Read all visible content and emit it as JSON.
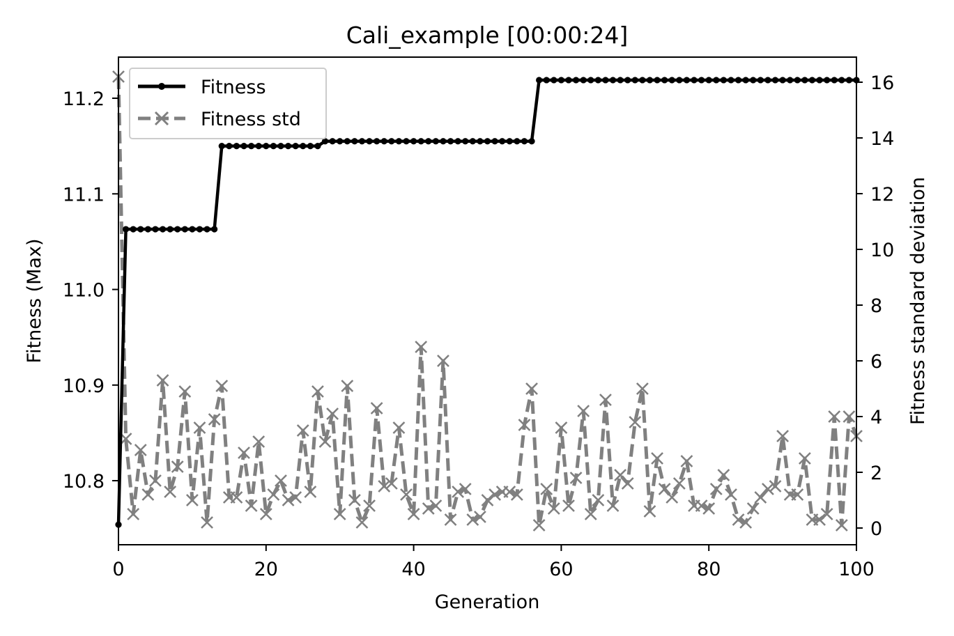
{
  "chart_data": {
    "type": "line",
    "title": "Cali_example  [00:00:24]",
    "xlabel": "Generation",
    "ylabel_left": "Fitness (Max)",
    "ylabel_right": "Fitness standard deviation",
    "xlim": [
      0,
      100
    ],
    "ylim_left": [
      10.733,
      11.243
    ],
    "ylim_right": [
      -0.6,
      16.9
    ],
    "xticks": [
      0,
      20,
      40,
      60,
      80,
      100
    ],
    "xtick_labels": [
      "0",
      "20",
      "40",
      "60",
      "80",
      "100"
    ],
    "yticks_left": [
      10.8,
      10.9,
      11.0,
      11.1,
      11.2
    ],
    "ytick_labels_left": [
      "10.8",
      "10.9",
      "11.0",
      "11.1",
      "11.2"
    ],
    "yticks_right": [
      0,
      2,
      4,
      6,
      8,
      10,
      12,
      14,
      16
    ],
    "ytick_labels_right": [
      "0",
      "2",
      "4",
      "6",
      "8",
      "10",
      "12",
      "14",
      "16"
    ],
    "grid": false,
    "legend": {
      "position": "top-left",
      "entries": [
        "Fitness",
        "Fitness std"
      ]
    },
    "series": [
      {
        "name": "Fitness",
        "axis": "left",
        "color": "#000000",
        "line_style": "solid",
        "marker": "dot",
        "x": [
          0,
          1,
          2,
          3,
          4,
          5,
          6,
          7,
          8,
          9,
          10,
          11,
          12,
          13,
          14,
          15,
          16,
          17,
          18,
          19,
          20,
          21,
          22,
          23,
          24,
          25,
          26,
          27,
          28,
          29,
          30,
          31,
          32,
          33,
          34,
          35,
          36,
          37,
          38,
          39,
          40,
          41,
          42,
          43,
          44,
          45,
          46,
          47,
          48,
          49,
          50,
          51,
          52,
          53,
          54,
          55,
          56,
          57,
          58,
          59,
          60,
          61,
          62,
          63,
          64,
          65,
          66,
          67,
          68,
          69,
          70,
          71,
          72,
          73,
          74,
          75,
          76,
          77,
          78,
          79,
          80,
          81,
          82,
          83,
          84,
          85,
          86,
          87,
          88,
          89,
          90,
          91,
          92,
          93,
          94,
          95,
          96,
          97,
          98,
          99,
          100
        ],
        "y": [
          10.754,
          11.063,
          11.063,
          11.063,
          11.063,
          11.063,
          11.063,
          11.063,
          11.063,
          11.063,
          11.063,
          11.063,
          11.063,
          11.063,
          11.15,
          11.15,
          11.15,
          11.15,
          11.15,
          11.15,
          11.15,
          11.15,
          11.15,
          11.15,
          11.15,
          11.15,
          11.15,
          11.15,
          11.155,
          11.155,
          11.155,
          11.155,
          11.155,
          11.155,
          11.155,
          11.155,
          11.155,
          11.155,
          11.155,
          11.155,
          11.155,
          11.155,
          11.155,
          11.155,
          11.155,
          11.155,
          11.155,
          11.155,
          11.155,
          11.155,
          11.155,
          11.155,
          11.155,
          11.155,
          11.155,
          11.155,
          11.155,
          11.219,
          11.219,
          11.219,
          11.219,
          11.219,
          11.219,
          11.219,
          11.219,
          11.219,
          11.219,
          11.219,
          11.219,
          11.219,
          11.219,
          11.219,
          11.219,
          11.219,
          11.219,
          11.219,
          11.219,
          11.219,
          11.219,
          11.219,
          11.219,
          11.219,
          11.219,
          11.219,
          11.219,
          11.219,
          11.219,
          11.219,
          11.219,
          11.219,
          11.219,
          11.219,
          11.219,
          11.219,
          11.219,
          11.219,
          11.219,
          11.219,
          11.219,
          11.219,
          11.219
        ]
      },
      {
        "name": "Fitness std",
        "axis": "right",
        "color": "#808080",
        "line_style": "dashed",
        "marker": "x",
        "x": [
          0,
          1,
          2,
          3,
          4,
          5,
          6,
          7,
          8,
          9,
          10,
          11,
          12,
          13,
          14,
          15,
          16,
          17,
          18,
          19,
          20,
          21,
          22,
          23,
          24,
          25,
          26,
          27,
          28,
          29,
          30,
          31,
          32,
          33,
          34,
          35,
          36,
          37,
          38,
          39,
          40,
          41,
          42,
          43,
          44,
          45,
          46,
          47,
          48,
          49,
          50,
          51,
          52,
          53,
          54,
          55,
          56,
          57,
          58,
          59,
          60,
          61,
          62,
          63,
          64,
          65,
          66,
          67,
          68,
          69,
          70,
          71,
          72,
          73,
          74,
          75,
          76,
          77,
          78,
          79,
          80,
          81,
          82,
          83,
          84,
          85,
          86,
          87,
          88,
          89,
          90,
          91,
          92,
          93,
          94,
          95,
          96,
          97,
          98,
          99,
          100
        ],
        "y": [
          16.2,
          3.2,
          0.5,
          2.8,
          1.2,
          1.7,
          5.3,
          1.3,
          2.2,
          4.9,
          1.0,
          3.6,
          0.2,
          3.9,
          5.1,
          1.1,
          1.1,
          2.7,
          0.8,
          3.1,
          0.5,
          1.2,
          1.7,
          1.0,
          1.1,
          3.5,
          1.3,
          4.9,
          3.1,
          4.1,
          0.5,
          5.1,
          1.0,
          0.2,
          0.8,
          4.3,
          1.5,
          1.6,
          3.6,
          1.2,
          0.5,
          6.5,
          0.7,
          0.8,
          6.0,
          0.3,
          1.3,
          1.4,
          0.3,
          0.4,
          1.0,
          1.2,
          1.3,
          1.3,
          1.2,
          3.7,
          5.0,
          0.1,
          1.4,
          0.7,
          3.6,
          0.8,
          1.8,
          4.2,
          0.5,
          1.0,
          4.6,
          0.8,
          1.9,
          1.6,
          3.8,
          5.0,
          0.6,
          2.5,
          1.4,
          1.1,
          1.6,
          2.4,
          0.8,
          0.8,
          0.7,
          1.4,
          1.9,
          1.2,
          0.3,
          0.2,
          0.7,
          1.1,
          1.4,
          1.5,
          3.3,
          1.2,
          1.2,
          2.5,
          0.3,
          0.3,
          0.5,
          4.0,
          0.1,
          4.0,
          3.3
        ]
      }
    ]
  }
}
